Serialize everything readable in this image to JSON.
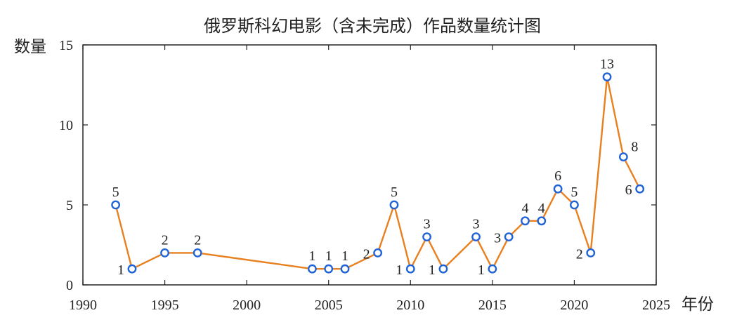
{
  "chart_data": {
    "type": "line",
    "title": "俄罗斯科幻电影（含未完成）作品数量统计图",
    "xlabel": "年份",
    "ylabel": "数量",
    "xlim": [
      1990,
      2025
    ],
    "ylim": [
      0,
      15
    ],
    "x_ticks": [
      1990,
      1995,
      2000,
      2005,
      2010,
      2015,
      2020,
      2025
    ],
    "y_ticks": [
      0,
      5,
      10,
      15
    ],
    "grid": false,
    "line_color": "#e8801f",
    "marker_color": "#1f63d6",
    "x": [
      1992,
      1993,
      1995,
      1997,
      2004,
      2005,
      2006,
      2008,
      2009,
      2010,
      2011,
      2012,
      2014,
      2015,
      2016,
      2017,
      2018,
      2019,
      2020,
      2021,
      2022,
      2023,
      2024
    ],
    "y": [
      5,
      1,
      2,
      2,
      1,
      1,
      1,
      2,
      5,
      1,
      3,
      1,
      3,
      1,
      3,
      4,
      4,
      6,
      5,
      2,
      13,
      8,
      6
    ],
    "label_side": [
      "above",
      "left",
      "above",
      "above",
      "above",
      "above",
      "above",
      "left",
      "above",
      "left",
      "above",
      "left",
      "above",
      "left",
      "left",
      "above",
      "above",
      "above",
      "above",
      "left",
      "above",
      "right",
      "left"
    ]
  }
}
